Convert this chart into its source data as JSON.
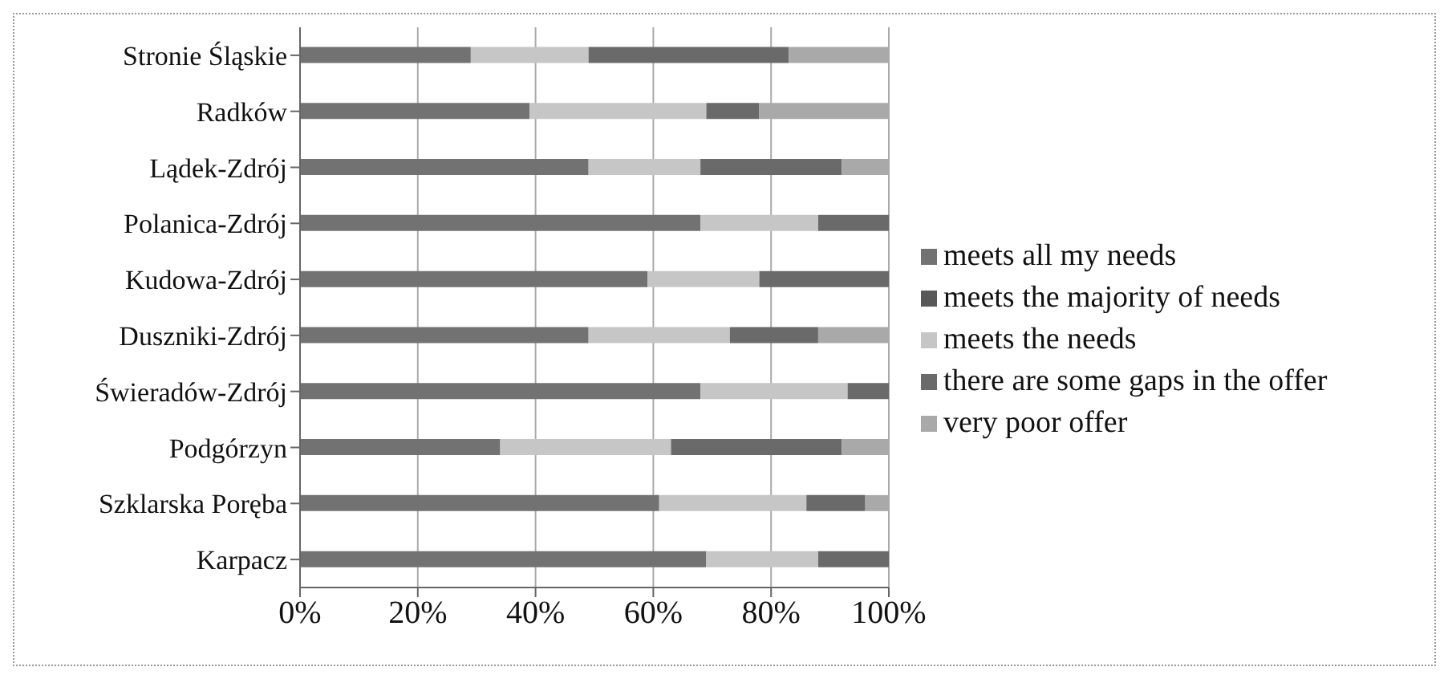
{
  "chart_data": {
    "type": "bar",
    "orientation": "horizontal",
    "stacked": true,
    "categories": [
      "Stronie Śląskie",
      "Radków",
      "Lądek-Zdrój",
      "Polanica-Zdrój",
      "Kudowa-Zdrój",
      "Duszniki-Zdrój",
      "Świeradów-Zdrój",
      "Podgórzyn",
      "Szklarska Poręba",
      "Karpacz"
    ],
    "series": [
      {
        "name": "meets all my needs",
        "color": "#727272",
        "values": [
          29,
          39,
          49,
          68,
          59,
          49,
          68,
          34,
          61,
          69
        ]
      },
      {
        "name": "meets the majority of needs",
        "color": "#585858",
        "values": [
          0,
          0,
          0,
          0,
          0,
          0,
          0,
          0,
          0,
          0
        ]
      },
      {
        "name": "meets the needs",
        "color": "#c6c6c6",
        "values": [
          20,
          30,
          19,
          20,
          19,
          24,
          25,
          29,
          25,
          19
        ]
      },
      {
        "name": "there are some gaps in the offer",
        "color": "#6a6a6a",
        "values": [
          34,
          9,
          24,
          12,
          22,
          15,
          7,
          29,
          10,
          12
        ]
      },
      {
        "name": "very poor offer",
        "color": "#a9a9a9",
        "values": [
          17,
          22,
          8,
          0,
          0,
          12,
          0,
          8,
          4,
          0
        ]
      }
    ],
    "xlim": [
      0,
      100
    ],
    "xticks": [
      {
        "value": 0,
        "label": "0%"
      },
      {
        "value": 20,
        "label": "20%"
      },
      {
        "value": 40,
        "label": "40%"
      },
      {
        "value": 60,
        "label": "60%"
      },
      {
        "value": 80,
        "label": "80%"
      },
      {
        "value": 100,
        "label": "100%"
      }
    ],
    "grid": "x",
    "legend": "right"
  }
}
